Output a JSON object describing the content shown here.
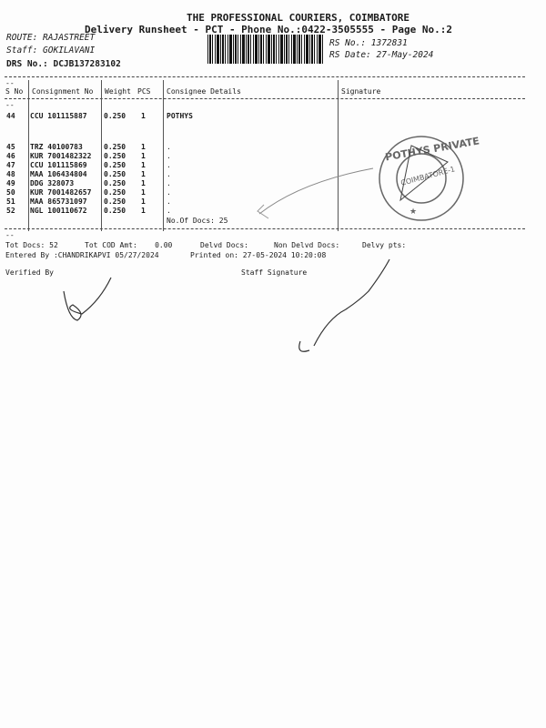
{
  "header": {
    "company": "THE PROFESSIONAL COURIERS, COIMBATORE",
    "subtitle": "Delivery Runsheet - PCT - Phone No.:0422-3505555 - Page No.:2",
    "route": "ROUTE: RAJASTREET",
    "staff": "Staff: GOKILAVANI",
    "drs": "DRS No.: DCJB137283102",
    "rs_no": "RS No.: 1372831",
    "rs_date": "RS Date: 27-May-2024"
  },
  "table": {
    "columns": [
      "S No",
      "Consignment No",
      "Weight",
      "PCS",
      "Consignee Details",
      "Signature"
    ],
    "rows": [
      {
        "sno": "44",
        "cons": "CCU 101115887",
        "weight": "0.250",
        "pcs": "1",
        "details": "POTHYS"
      },
      {
        "sno": "45",
        "cons": "TRZ 40100783",
        "weight": "0.250",
        "pcs": "1",
        "details": "."
      },
      {
        "sno": "46",
        "cons": "KUR 7001482322",
        "weight": "0.250",
        "pcs": "1",
        "details": "."
      },
      {
        "sno": "47",
        "cons": "CCU 101115869",
        "weight": "0.250",
        "pcs": "1",
        "details": "."
      },
      {
        "sno": "48",
        "cons": "MAA 106434804",
        "weight": "0.250",
        "pcs": "1",
        "details": "."
      },
      {
        "sno": "49",
        "cons": "DDG 328073",
        "weight": "0.250",
        "pcs": "1",
        "details": "."
      },
      {
        "sno": "50",
        "cons": "KUR 7001482657",
        "weight": "0.250",
        "pcs": "1",
        "details": "."
      },
      {
        "sno": "51",
        "cons": "MAA 865731097",
        "weight": "0.250",
        "pcs": "1",
        "details": "."
      },
      {
        "sno": "52",
        "cons": "NGL 100110672",
        "weight": "0.250",
        "pcs": "1",
        "details": "."
      }
    ],
    "no_of_docs": "No.Of Docs: 25"
  },
  "footer": {
    "tot_docs": "Tot Docs:  52",
    "tot_cod": "Tot COD Amt:    0.00",
    "delvd": "Delvd Docs:",
    "non_delvd": "Non Delvd Docs:",
    "delvy_pts": "Delvy pts:",
    "entered_by": "Entered By :CHANDRIKAPVI 05/27/2024",
    "printed_on": "Printed on: 27-05-2024 10:20:08",
    "verified_by": "Verified By",
    "staff_signature": "Staff Signature"
  },
  "stamp": {
    "text": "POTHYS PRIVATE LIMITED",
    "city": "COIMBATORE-1",
    "color": "#555555"
  }
}
